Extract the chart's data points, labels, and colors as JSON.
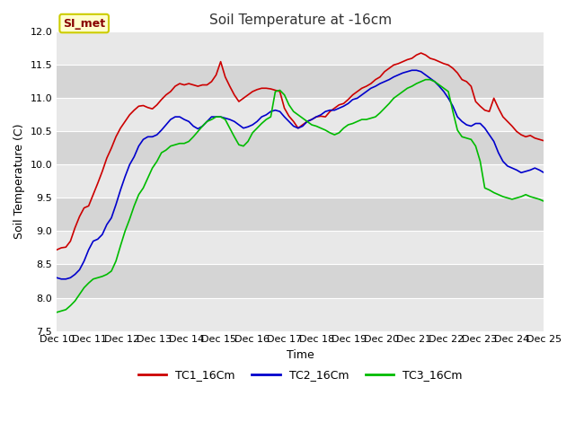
{
  "title": "Soil Temperature at -16cm",
  "xlabel": "Time",
  "ylabel": "Soil Temperature (C)",
  "ylim": [
    7.5,
    12.0
  ],
  "yticks": [
    7.5,
    8.0,
    8.5,
    9.0,
    9.5,
    10.0,
    10.5,
    11.0,
    11.5,
    12.0
  ],
  "xtick_labels": [
    "Dec 10",
    "Dec 11",
    "Dec 12",
    "Dec 13",
    "Dec 14",
    "Dec 15",
    "Dec 16",
    "Dec 17",
    "Dec 18",
    "Dec 19",
    "Dec 20",
    "Dec 21",
    "Dec 22",
    "Dec 23",
    "Dec 24",
    "Dec 25"
  ],
  "figure_bg": "#ffffff",
  "plot_bg_light": "#e8e8e8",
  "plot_bg_dark": "#d5d5d5",
  "grid_color": "#ffffff",
  "legend_label": "SI_met",
  "legend_box_color": "#ffffcc",
  "legend_box_edge": "#cccc00",
  "series_colors": [
    "#cc0000",
    "#0000cc",
    "#00bb00"
  ],
  "series_labels": [
    "TC1_16Cm",
    "TC2_16Cm",
    "TC3_16Cm"
  ],
  "TC1": [
    8.72,
    8.75,
    8.76,
    8.85,
    9.05,
    9.22,
    9.35,
    9.38,
    9.55,
    9.72,
    9.9,
    10.1,
    10.25,
    10.42,
    10.55,
    10.65,
    10.75,
    10.82,
    10.88,
    10.89,
    10.86,
    10.84,
    10.9,
    10.98,
    11.05,
    11.1,
    11.18,
    11.22,
    11.2,
    11.22,
    11.2,
    11.18,
    11.2,
    11.2,
    11.25,
    11.35,
    11.55,
    11.32,
    11.18,
    11.05,
    10.95,
    11.0,
    11.05,
    11.1,
    11.13,
    11.15,
    11.15,
    11.14,
    11.12,
    11.1,
    10.85,
    10.73,
    10.65,
    10.55,
    10.6,
    10.65,
    10.68,
    10.72,
    10.73,
    10.72,
    10.8,
    10.85,
    10.9,
    10.92,
    10.98,
    11.05,
    11.1,
    11.15,
    11.18,
    11.22,
    11.28,
    11.32,
    11.4,
    11.45,
    11.5,
    11.52,
    11.55,
    11.58,
    11.6,
    11.65,
    11.68,
    11.65,
    11.6,
    11.58,
    11.55,
    11.52,
    11.5,
    11.45,
    11.38,
    11.28,
    11.25,
    11.18,
    10.95,
    10.88,
    10.82,
    10.8,
    11.0,
    10.85,
    10.72,
    10.65,
    10.58,
    10.5,
    10.45,
    10.42,
    10.44,
    10.4,
    10.38,
    10.36
  ],
  "TC2": [
    8.3,
    8.28,
    8.28,
    8.3,
    8.35,
    8.42,
    8.55,
    8.72,
    8.85,
    8.88,
    8.95,
    9.1,
    9.2,
    9.4,
    9.62,
    9.82,
    10.0,
    10.12,
    10.28,
    10.38,
    10.42,
    10.42,
    10.45,
    10.52,
    10.6,
    10.68,
    10.72,
    10.72,
    10.68,
    10.65,
    10.58,
    10.54,
    10.58,
    10.65,
    10.72,
    10.72,
    10.72,
    10.7,
    10.68,
    10.65,
    10.6,
    10.55,
    10.57,
    10.6,
    10.65,
    10.72,
    10.75,
    10.8,
    10.82,
    10.8,
    10.72,
    10.65,
    10.58,
    10.55,
    10.58,
    10.65,
    10.68,
    10.72,
    10.75,
    10.8,
    10.82,
    10.82,
    10.85,
    10.88,
    10.92,
    10.98,
    11.0,
    11.05,
    11.1,
    11.15,
    11.18,
    11.22,
    11.25,
    11.28,
    11.32,
    11.35,
    11.38,
    11.4,
    11.42,
    11.42,
    11.4,
    11.35,
    11.3,
    11.25,
    11.18,
    11.1,
    11.0,
    10.88,
    10.72,
    10.65,
    10.6,
    10.58,
    10.62,
    10.62,
    10.55,
    10.45,
    10.35,
    10.18,
    10.05,
    9.98,
    9.95,
    9.92,
    9.88,
    9.9,
    9.92,
    9.95,
    9.92,
    9.88
  ],
  "TC3": [
    7.78,
    7.8,
    7.82,
    7.88,
    7.95,
    8.05,
    8.15,
    8.22,
    8.28,
    8.3,
    8.32,
    8.35,
    8.4,
    8.55,
    8.78,
    9.0,
    9.18,
    9.38,
    9.55,
    9.65,
    9.8,
    9.95,
    10.05,
    10.18,
    10.22,
    10.28,
    10.3,
    10.32,
    10.32,
    10.35,
    10.42,
    10.5,
    10.58,
    10.65,
    10.68,
    10.72,
    10.72,
    10.68,
    10.55,
    10.42,
    10.3,
    10.28,
    10.35,
    10.48,
    10.55,
    10.62,
    10.68,
    10.72,
    11.1,
    11.12,
    11.05,
    10.9,
    10.8,
    10.75,
    10.7,
    10.65,
    10.6,
    10.58,
    10.55,
    10.52,
    10.48,
    10.45,
    10.48,
    10.55,
    10.6,
    10.62,
    10.65,
    10.68,
    10.68,
    10.7,
    10.72,
    10.78,
    10.85,
    10.92,
    11.0,
    11.05,
    11.1,
    11.15,
    11.18,
    11.22,
    11.25,
    11.28,
    11.28,
    11.25,
    11.2,
    11.15,
    11.1,
    10.8,
    10.52,
    10.42,
    10.4,
    10.38,
    10.28,
    10.05,
    9.65,
    9.62,
    9.58,
    9.55,
    9.52,
    9.5,
    9.48,
    9.5,
    9.52,
    9.55,
    9.52,
    9.5,
    9.48,
    9.45
  ]
}
